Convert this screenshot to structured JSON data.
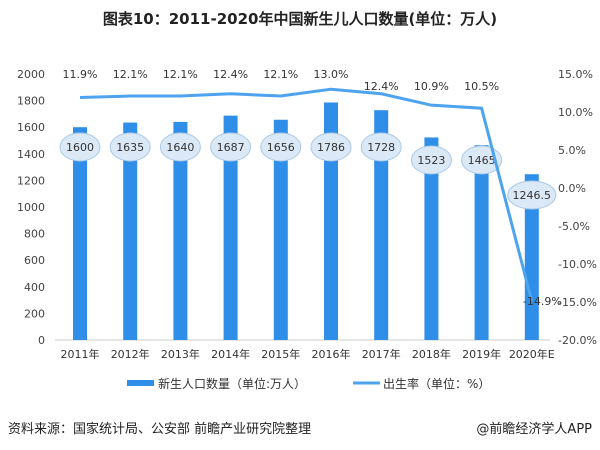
{
  "chart_data": {
    "type": "bar+line",
    "title": "图表10：2011-2020年中国新生儿人口数量(单位：万人)",
    "categories": [
      "2011年",
      "2012年",
      "2013年",
      "2014年",
      "2015年",
      "2016年",
      "2017年",
      "2018年",
      "2019年",
      "2020年E"
    ],
    "series": [
      {
        "name": "新生人口数量（单位:万人）",
        "type": "bar",
        "axis": "left",
        "color": "#2f8fe8",
        "values": [
          1600,
          1635,
          1640,
          1687,
          1656,
          1786,
          1728,
          1523,
          1465,
          1246.5
        ],
        "labels": [
          "1600",
          "1635",
          "1640",
          "1687",
          "1656",
          "1786",
          "1728",
          "1523",
          "1465",
          "1246.5"
        ]
      },
      {
        "name": "出生率（单位：%）",
        "type": "line",
        "axis": "right",
        "color": "#4da3ee",
        "values": [
          11.9,
          12.1,
          12.1,
          12.4,
          12.1,
          13.0,
          12.4,
          10.9,
          10.5,
          -14.9
        ],
        "labels": [
          "11.9%",
          "12.1%",
          "12.1%",
          "12.4%",
          "12.1%",
          "13.0%",
          "12.4%",
          "10.9%",
          "10.5%",
          "-14.9%"
        ]
      }
    ],
    "left_axis": {
      "ylim": [
        0,
        2000
      ],
      "ticks": [
        "0",
        "200",
        "400",
        "600",
        "800",
        "1000",
        "1200",
        "1400",
        "1600",
        "1800",
        "2000"
      ]
    },
    "right_axis": {
      "ylim": [
        -20,
        15
      ],
      "ticks": [
        "-20.0%",
        "-15.0%",
        "-10.0%",
        "-5.0%",
        "0.0%",
        "5.0%",
        "10.0%",
        "15.0%"
      ]
    },
    "grid": false,
    "legend": "bottom"
  },
  "footer": {
    "source": "资料来源：国家统计局、公安部 前瞻产业研究院整理",
    "credit": "@前瞻经济学人APP"
  }
}
